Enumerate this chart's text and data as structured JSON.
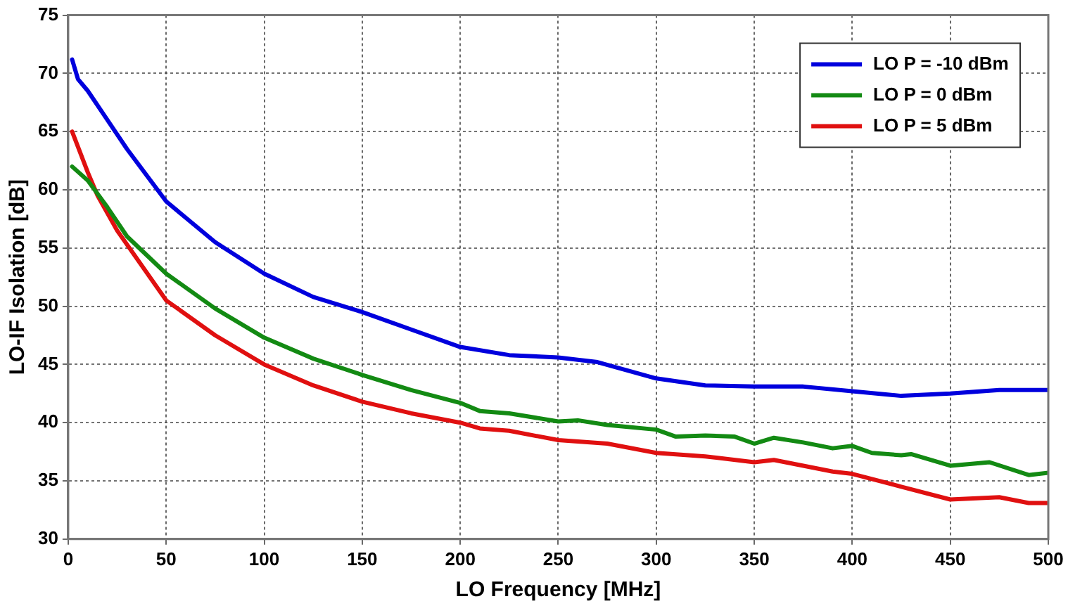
{
  "chart_data": {
    "type": "line",
    "xlabel": "LO Frequency [MHz]",
    "ylabel": "LO-IF Isolation [dB]",
    "xlim": [
      0,
      500
    ],
    "xticks": [
      0,
      50,
      100,
      150,
      200,
      250,
      300,
      350,
      400,
      450,
      500
    ],
    "ylim": [
      30,
      75
    ],
    "yticks": [
      30,
      35,
      40,
      45,
      50,
      55,
      60,
      65,
      70,
      75
    ],
    "grid": true,
    "legend": "top right",
    "marker": "none",
    "line_style": "solid",
    "series": [
      {
        "name": "LO P = -10 dBm",
        "color": "#0000dd",
        "x": [
          2,
          5,
          10,
          20,
          30,
          50,
          75,
          100,
          125,
          150,
          175,
          200,
          225,
          250,
          270,
          300,
          325,
          350,
          375,
          400,
          425,
          450,
          475,
          500
        ],
        "values": [
          71.2,
          69.5,
          68.5,
          66,
          63.5,
          59,
          55.5,
          52.8,
          50.8,
          49.5,
          48,
          46.5,
          45.8,
          45.6,
          45.2,
          43.8,
          43.2,
          43.1,
          43.1,
          42.7,
          42.3,
          42.5,
          42.8,
          42.8
        ]
      },
      {
        "name": "LO P = 0 dBm",
        "color": "#138a13",
        "x": [
          2,
          10,
          20,
          30,
          50,
          75,
          100,
          125,
          150,
          175,
          200,
          210,
          225,
          250,
          260,
          275,
          300,
          310,
          325,
          340,
          350,
          360,
          375,
          390,
          400,
          410,
          425,
          430,
          450,
          470,
          490,
          500
        ],
        "values": [
          62,
          60.8,
          58.5,
          56,
          52.8,
          49.8,
          47.3,
          45.5,
          44.1,
          42.8,
          41.7,
          41,
          40.8,
          40.1,
          40.2,
          39.8,
          39.4,
          38.8,
          38.9,
          38.8,
          38.2,
          38.7,
          38.3,
          37.8,
          38,
          37.4,
          37.2,
          37.3,
          36.3,
          36.6,
          35.5,
          35.7
        ]
      },
      {
        "name": "LO P = 5 dBm",
        "color": "#e01010",
        "x": [
          2,
          10,
          15,
          25,
          50,
          75,
          100,
          125,
          150,
          175,
          200,
          210,
          225,
          250,
          275,
          300,
          325,
          350,
          360,
          375,
          390,
          400,
          425,
          450,
          475,
          490,
          500
        ],
        "values": [
          65,
          61.5,
          59.5,
          56.5,
          50.5,
          47.5,
          45,
          43.2,
          41.8,
          40.8,
          40,
          39.5,
          39.3,
          38.5,
          38.2,
          37.4,
          37.1,
          36.6,
          36.8,
          36.3,
          35.8,
          35.6,
          34.5,
          33.4,
          33.6,
          33.1,
          33.1
        ]
      }
    ]
  }
}
